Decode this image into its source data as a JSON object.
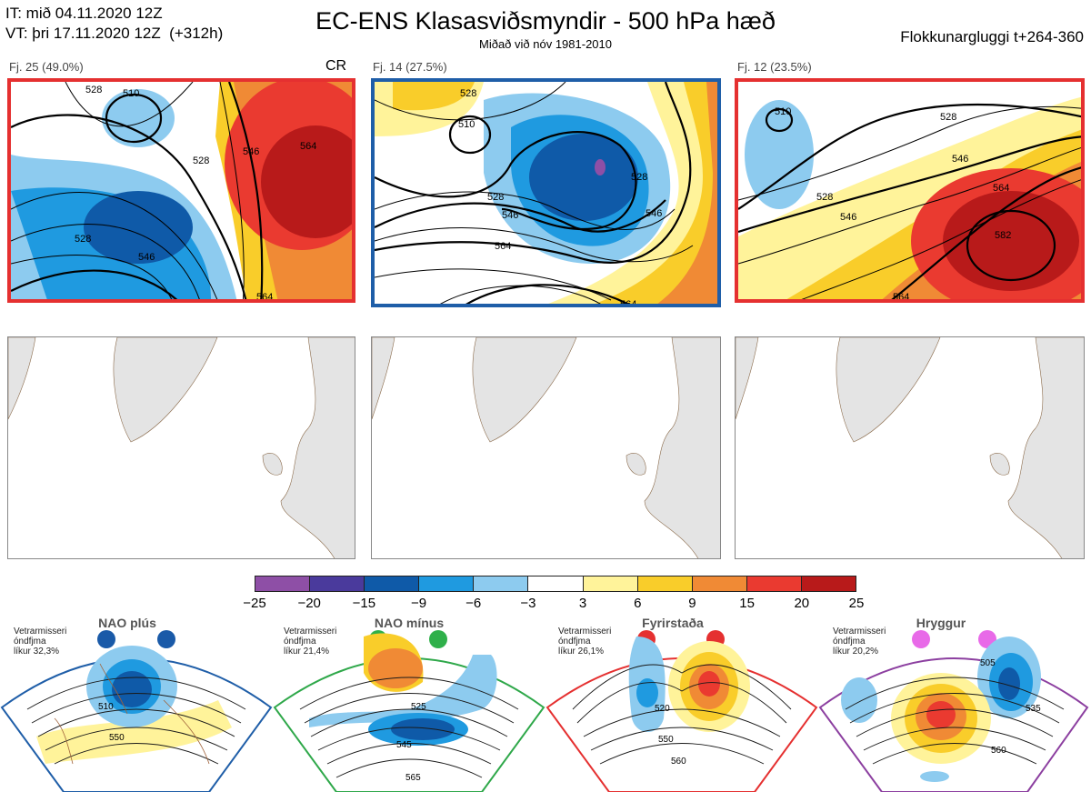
{
  "header": {
    "init_time": "IT: mið 04.11.2020 12Z",
    "valid_time": "VT: þri 17.11.2020 12Z  (+312h)",
    "title": "EC-ENS Klasasviðsmyndir - 500 hPa hæð",
    "subtitle": "Miðað við nóv 1981-2010",
    "window": "Flokkunargluggi t+264-360"
  },
  "clusters": [
    {
      "label": "Fj. 25 (49.0%)",
      "tag": "CR",
      "border_color": "#e53030",
      "contours": [
        "510",
        "528",
        "546",
        "564",
        "546",
        "528",
        "528",
        "564"
      ]
    },
    {
      "label": "Fj. 14 (27.5%)",
      "tag": "",
      "border_color": "#1f5ea8",
      "contours": [
        "528",
        "510",
        "528",
        "546",
        "564",
        "528",
        "546",
        "564"
      ]
    },
    {
      "label": "Fj. 12 (23.5%)",
      "tag": "",
      "border_color": "#e53030",
      "contours": [
        "510",
        "528",
        "528",
        "546",
        "546",
        "564",
        "582",
        "564"
      ]
    }
  ],
  "colorbar": {
    "colors": [
      "#8e4fa6",
      "#4a3a9c",
      "#0f5aa8",
      "#1f9ae0",
      "#8dcbef",
      "#ffffff",
      "#fff39a",
      "#f9cd2a",
      "#f08a35",
      "#ea3a30",
      "#b81a1a"
    ],
    "ticks": [
      "−25",
      "−20",
      "−15",
      "−9",
      "−6",
      "−3",
      "3",
      "6",
      "9",
      "15",
      "20",
      "25"
    ]
  },
  "regimes": [
    {
      "name": "NAO plús",
      "text": "Vetrarmisseri\nóndfjma\nlíkur 32,3%",
      "color": "#1f5ea8",
      "dot_color": "#1a5aa8",
      "contours": [
        "510",
        "550"
      ]
    },
    {
      "name": "NAO mínus",
      "text": "Vetrarmisseri\nóndfjma\nlíkur 21,4%",
      "color": "#2fa84a",
      "dot_color": "#2fb04a",
      "contours": [
        "525",
        "545",
        "565"
      ]
    },
    {
      "name": "Fyrirstaða",
      "text": "Vetrarmisseri\nóndfjma\nlíkur 26,1%",
      "color": "#e53030",
      "dot_color": "#e53030",
      "contours": [
        "520",
        "550",
        "560"
      ]
    },
    {
      "name": "Hryggur",
      "text": "Vetrarmisseri\nóndfjma\nlíkur 20,2%",
      "color": "#8c3fa0",
      "dot_color": "#e86ae8",
      "contours": [
        "505",
        "535",
        "560"
      ]
    }
  ]
}
